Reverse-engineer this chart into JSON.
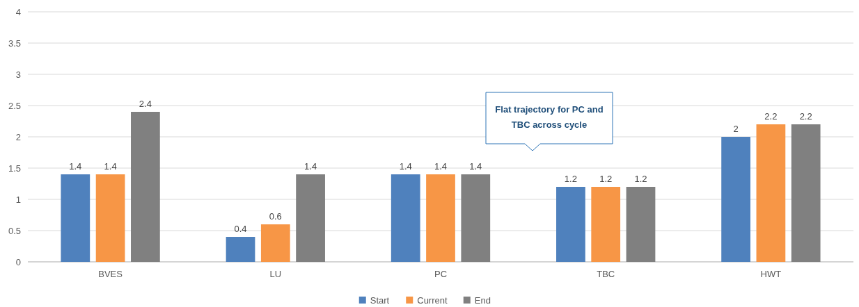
{
  "chart_data": {
    "type": "bar",
    "categories": [
      "BVES",
      "LU",
      "PC",
      "TBC",
      "HWT"
    ],
    "series": [
      {
        "name": "Start",
        "color": "#4f81bd",
        "values": [
          1.4,
          0.4,
          1.4,
          1.2,
          2
        ]
      },
      {
        "name": "Current",
        "color": "#f79646",
        "values": [
          1.4,
          0.6,
          1.4,
          1.2,
          2.2
        ]
      },
      {
        "name": "End",
        "color": "#808080",
        "values": [
          2.4,
          1.4,
          1.4,
          1.2,
          2.2
        ]
      }
    ],
    "ylim": [
      0,
      4
    ],
    "yticks": [
      0,
      0.5,
      1,
      1.5,
      2,
      2.5,
      3,
      3.5,
      4
    ],
    "grid": "y",
    "legend": "bottom",
    "data_labels": true,
    "annotations": [
      "Flat trajectory for PC and TBC across cycle"
    ]
  }
}
